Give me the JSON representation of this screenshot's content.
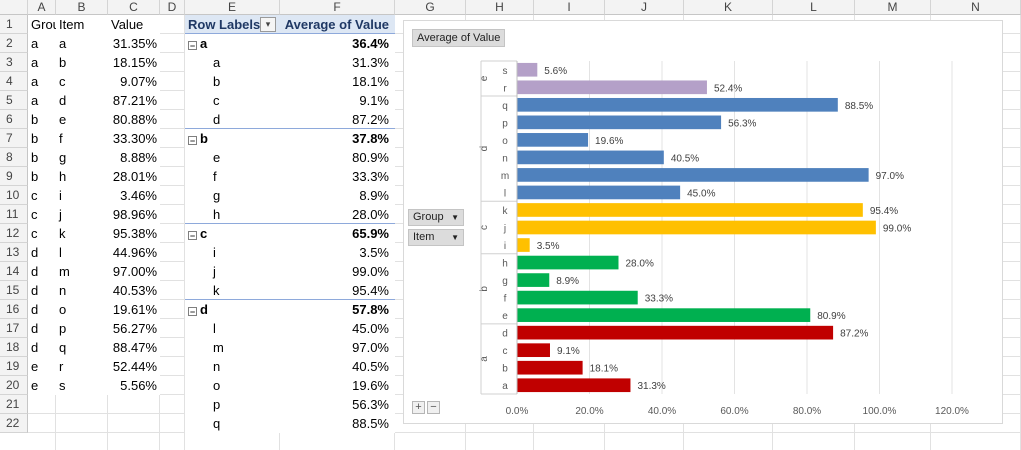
{
  "columns": [
    "A",
    "B",
    "C",
    "D",
    "E",
    "F",
    "G",
    "H",
    "I",
    "J",
    "K",
    "L",
    "M",
    "N"
  ],
  "rows": [
    "1",
    "2",
    "3",
    "4",
    "5",
    "6",
    "7",
    "8",
    "9",
    "10",
    "11",
    "12",
    "13",
    "14",
    "15",
    "16",
    "17",
    "18",
    "19",
    "20",
    "21",
    "22"
  ],
  "source_headers": [
    "Group",
    "Item",
    "Value"
  ],
  "source_rows": [
    [
      "a",
      "a",
      "31.35%"
    ],
    [
      "a",
      "b",
      "18.15%"
    ],
    [
      "a",
      "c",
      "9.07%"
    ],
    [
      "a",
      "d",
      "87.21%"
    ],
    [
      "b",
      "e",
      "80.88%"
    ],
    [
      "b",
      "f",
      "33.30%"
    ],
    [
      "b",
      "g",
      "8.88%"
    ],
    [
      "b",
      "h",
      "28.01%"
    ],
    [
      "c",
      "i",
      "3.46%"
    ],
    [
      "c",
      "j",
      "98.96%"
    ],
    [
      "c",
      "k",
      "95.38%"
    ],
    [
      "d",
      "l",
      "44.96%"
    ],
    [
      "d",
      "m",
      "97.00%"
    ],
    [
      "d",
      "n",
      "40.53%"
    ],
    [
      "d",
      "o",
      "19.61%"
    ],
    [
      "d",
      "p",
      "56.27%"
    ],
    [
      "d",
      "q",
      "88.47%"
    ],
    [
      "e",
      "r",
      "52.44%"
    ],
    [
      "e",
      "s",
      "5.56%"
    ]
  ],
  "pivot": {
    "header_labels": "Row Labels",
    "header_value": "Average of Value",
    "rows": [
      {
        "label": "a",
        "value": "36.4%",
        "group": true
      },
      {
        "label": "a",
        "value": "31.3%",
        "group": false
      },
      {
        "label": "b",
        "value": "18.1%",
        "group": false
      },
      {
        "label": "c",
        "value": "9.1%",
        "group": false
      },
      {
        "label": "d",
        "value": "87.2%",
        "group": false
      },
      {
        "label": "b",
        "value": "37.8%",
        "group": true
      },
      {
        "label": "e",
        "value": "80.9%",
        "group": false
      },
      {
        "label": "f",
        "value": "33.3%",
        "group": false
      },
      {
        "label": "g",
        "value": "8.9%",
        "group": false
      },
      {
        "label": "h",
        "value": "28.0%",
        "group": false
      },
      {
        "label": "c",
        "value": "65.9%",
        "group": true
      },
      {
        "label": "i",
        "value": "3.5%",
        "group": false
      },
      {
        "label": "j",
        "value": "99.0%",
        "group": false
      },
      {
        "label": "k",
        "value": "95.4%",
        "group": false
      },
      {
        "label": "d",
        "value": "57.8%",
        "group": true
      },
      {
        "label": "l",
        "value": "45.0%",
        "group": false
      },
      {
        "label": "m",
        "value": "97.0%",
        "group": false
      },
      {
        "label": "n",
        "value": "40.5%",
        "group": false
      },
      {
        "label": "o",
        "value": "19.6%",
        "group": false
      },
      {
        "label": "p",
        "value": "56.3%",
        "group": false
      },
      {
        "label": "q",
        "value": "88.5%",
        "group": false
      }
    ]
  },
  "chart_ui": {
    "field_button": "Average of Value",
    "filter_group": "Group",
    "filter_item": "Item",
    "plus": "+",
    "minus": "−"
  },
  "colors": {
    "a": "#c00000",
    "b": "#00b050",
    "c": "#ffc000",
    "d": "#4f81bd",
    "e": "#b4a0c8"
  },
  "chart_data": {
    "type": "bar",
    "orientation": "horizontal",
    "title": "Average of Value",
    "xlim": [
      0,
      120
    ],
    "xticks": [
      "0.0%",
      "20.0%",
      "40.0%",
      "60.0%",
      "80.0%",
      "100.0%",
      "120.0%"
    ],
    "groups": [
      {
        "name": "e",
        "items": [
          {
            "label": "s",
            "value": 5.6,
            "text": "5.6%"
          },
          {
            "label": "r",
            "value": 52.4,
            "text": "52.4%"
          }
        ]
      },
      {
        "name": "d",
        "items": [
          {
            "label": "q",
            "value": 88.5,
            "text": "88.5%"
          },
          {
            "label": "p",
            "value": 56.3,
            "text": "56.3%"
          },
          {
            "label": "o",
            "value": 19.6,
            "text": "19.6%"
          },
          {
            "label": "n",
            "value": 40.5,
            "text": "40.5%"
          },
          {
            "label": "m",
            "value": 97.0,
            "text": "97.0%"
          },
          {
            "label": "l",
            "value": 45.0,
            "text": "45.0%"
          }
        ]
      },
      {
        "name": "c",
        "items": [
          {
            "label": "k",
            "value": 95.4,
            "text": "95.4%"
          },
          {
            "label": "j",
            "value": 99.0,
            "text": "99.0%"
          },
          {
            "label": "i",
            "value": 3.5,
            "text": "3.5%"
          }
        ]
      },
      {
        "name": "b",
        "items": [
          {
            "label": "h",
            "value": 28.0,
            "text": "28.0%"
          },
          {
            "label": "g",
            "value": 8.9,
            "text": "8.9%"
          },
          {
            "label": "f",
            "value": 33.3,
            "text": "33.3%"
          },
          {
            "label": "e",
            "value": 80.9,
            "text": "80.9%"
          }
        ]
      },
      {
        "name": "a",
        "items": [
          {
            "label": "d",
            "value": 87.2,
            "text": "87.2%"
          },
          {
            "label": "c",
            "value": 9.1,
            "text": "9.1%"
          },
          {
            "label": "b",
            "value": 18.1,
            "text": "18.1%"
          },
          {
            "label": "a",
            "value": 31.3,
            "text": "31.3%"
          }
        ]
      }
    ]
  }
}
